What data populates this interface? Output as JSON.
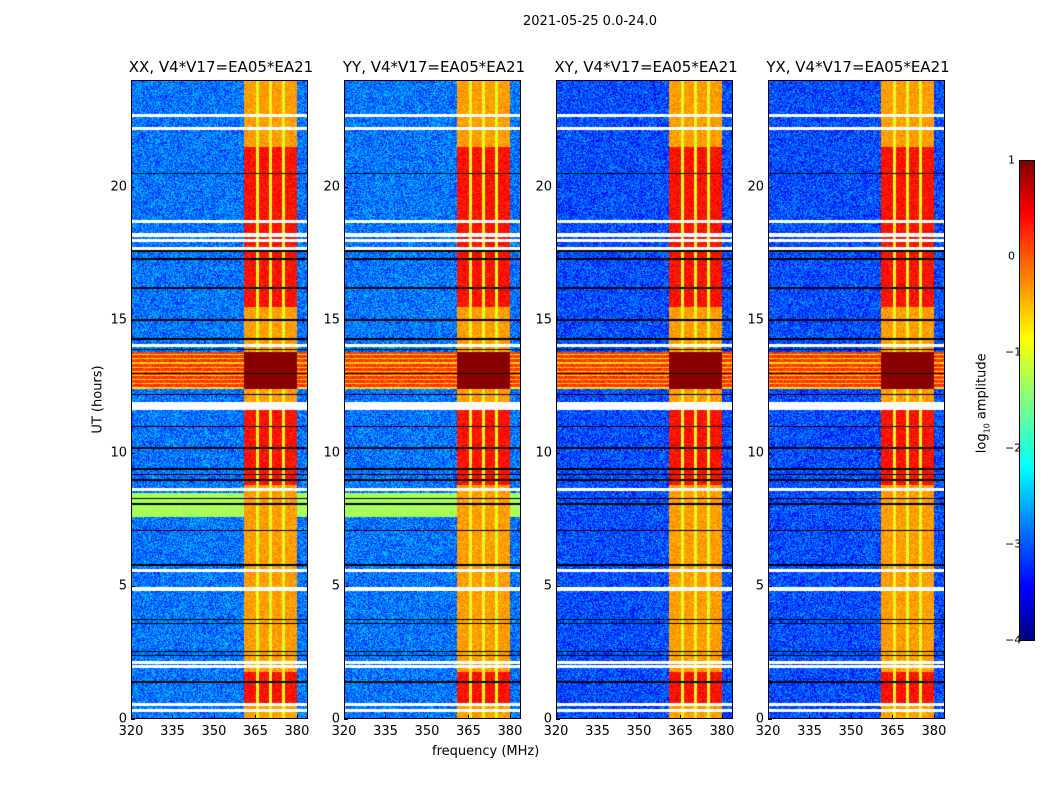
{
  "chart_data": {
    "type": "heatmap",
    "title": "2021-05-25 0.0-24.0",
    "xlabel": "frequency (MHz)",
    "ylabel": "UT (hours)",
    "xlim": [
      320,
      384
    ],
    "ylim": [
      0,
      24
    ],
    "xticks": [
      "320",
      "335",
      "350",
      "365",
      "380"
    ],
    "xtick_values": [
      320,
      335,
      350,
      365,
      380
    ],
    "yticks": [
      "0",
      "5",
      "10",
      "15",
      "20"
    ],
    "ytick_values": [
      0,
      5,
      10,
      15,
      20
    ],
    "panels": [
      {
        "title": "XX, V4*V17=EA05*EA21",
        "variant": "parallel"
      },
      {
        "title": "YY, V4*V17=EA05*EA21",
        "variant": "parallel"
      },
      {
        "title": "XY, V4*V17=EA05*EA21",
        "variant": "cross"
      },
      {
        "title": "YX, V4*V17=EA05*EA21",
        "variant": "cross"
      }
    ],
    "colorbar": {
      "label_main": "log",
      "label_sub": "10",
      "label_rest": " amplitude",
      "range": [
        -4,
        1
      ],
      "ticks": [
        "1",
        "0",
        "−1",
        "−2",
        "−3",
        "−4"
      ],
      "tick_values": [
        1,
        0,
        -1,
        -2,
        -3,
        -4
      ],
      "colormap": "jet"
    },
    "features": {
      "background_log_amp": -2.9,
      "rfi_band_mhz": [
        360.8,
        380
      ],
      "rfi_band_gaps_mhz": [
        365.5,
        370.2,
        374.9
      ],
      "rfi_band_log_amp": -0.4,
      "strong_band_hours": [
        [
          15.5,
          21.5
        ],
        [
          8.8,
          11.8
        ],
        [
          0.5,
          1.8
        ]
      ],
      "broadband_rfi_hours": [
        12.4,
        13.8
      ],
      "elevated_bg_hours": [
        7.6,
        8.5
      ],
      "flagged_rows_hours": [
        0.35,
        0.55,
        2.0,
        2.15,
        4.9,
        5.6,
        8.65,
        11.7,
        11.85,
        14.05,
        17.7,
        18.0,
        18.2,
        18.7,
        22.2,
        22.7
      ],
      "dark_rows_hours": [
        1.4,
        2.4,
        2.55,
        3.6,
        3.75,
        5.8,
        7.1,
        8.1,
        8.3,
        9.0,
        9.2,
        9.4,
        10.2,
        11.0,
        12.2,
        13.0,
        13.9,
        14.3,
        15.0,
        16.2,
        17.3,
        17.6,
        20.5
      ]
    }
  }
}
